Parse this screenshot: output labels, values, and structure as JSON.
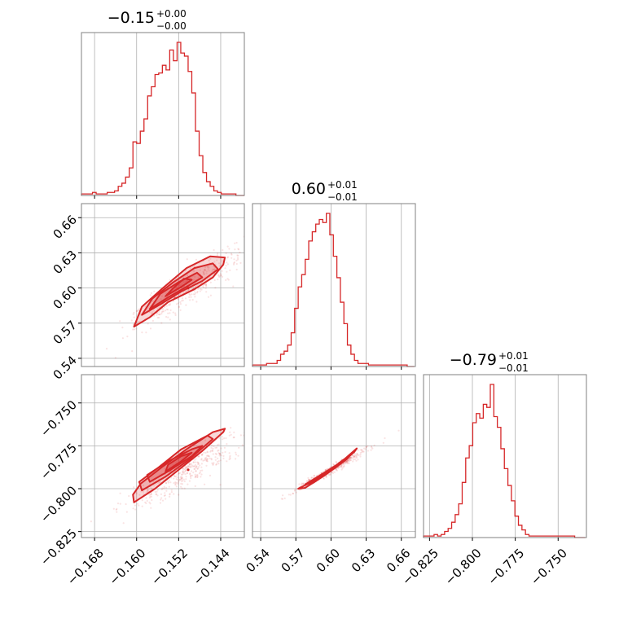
{
  "chart_data": {
    "type": "corner",
    "color": "#d62728",
    "grid": true,
    "parameters": [
      {
        "title_value": "−0.15",
        "title_plus": "+0.00",
        "title_minus": "−0.00",
        "range": [
          -0.1705,
          -0.1395
        ],
        "ticks": [
          -0.168,
          -0.16,
          -0.152,
          -0.144
        ],
        "tick_labels": [
          "−0.168",
          "−0.160",
          "−0.152",
          "−0.144"
        ],
        "histogram": {
          "bin_edges_start": -0.1705,
          "bin_width": 0.0007,
          "counts": [
            1,
            1,
            1,
            2,
            1,
            1,
            1,
            2,
            2,
            3,
            6,
            8,
            12,
            18,
            35,
            34,
            42,
            50,
            65,
            71,
            79,
            80,
            85,
            82,
            95,
            88,
            100,
            93,
            91,
            81,
            67,
            42,
            26,
            15,
            9,
            6,
            3,
            2,
            1,
            1,
            1,
            1,
            0,
            0,
            0
          ]
        }
      },
      {
        "title_value": "0.60",
        "title_plus": "+0.01",
        "title_minus": "−0.01",
        "range": [
          0.533,
          0.672
        ],
        "ticks": [
          0.54,
          0.57,
          0.6,
          0.63,
          0.66
        ],
        "tick_labels": [
          "0.54",
          "0.57",
          "0.60",
          "0.63",
          "0.66"
        ],
        "histogram": {
          "bin_edges_start": 0.533,
          "bin_width": 0.003,
          "counts": [
            1,
            1,
            1,
            1,
            2,
            2,
            2,
            4,
            8,
            10,
            14,
            22,
            38,
            52,
            60,
            70,
            82,
            88,
            93,
            96,
            94,
            100,
            86,
            72,
            58,
            42,
            28,
            14,
            8,
            4,
            2,
            2,
            2,
            1,
            1,
            1,
            1,
            1,
            1,
            1,
            1,
            1,
            1,
            1,
            0,
            0
          ]
        }
      },
      {
        "title_value": "−0.79",
        "title_plus": "+0.01",
        "title_minus": "−0.01",
        "range": [
          -0.8285,
          -0.7335
        ],
        "ticks": [
          -0.825,
          -0.8,
          -0.775,
          -0.75
        ],
        "tick_labels": [
          "−0.825",
          "−0.800",
          "−0.775",
          "−0.750"
        ],
        "histogram": {
          "bin_edges_start": -0.8285,
          "bin_width": 0.00205,
          "counts": [
            1,
            1,
            1,
            2,
            1,
            2,
            4,
            6,
            10,
            15,
            22,
            36,
            52,
            60,
            75,
            81,
            78,
            87,
            85,
            100,
            79,
            72,
            58,
            45,
            34,
            24,
            14,
            8,
            5,
            2,
            1,
            1,
            1,
            1,
            1,
            1,
            1,
            1,
            1,
            1,
            1,
            1,
            1,
            0,
            0,
            0
          ]
        }
      }
    ],
    "pairs": [
      {
        "row": 1,
        "col": 0,
        "center": [
          -0.1502,
          0.6
        ],
        "contours": [
          [
            [
              -0.1605,
              0.567
            ],
            [
              -0.1575,
              0.575
            ],
            [
              -0.154,
              0.588
            ],
            [
              -0.149,
              0.599
            ],
            [
              -0.1455,
              0.609
            ],
            [
              -0.1435,
              0.62
            ],
            [
              -0.1432,
              0.626
            ],
            [
              -0.146,
              0.627
            ],
            [
              -0.1505,
              0.617
            ],
            [
              -0.155,
              0.6
            ],
            [
              -0.159,
              0.584
            ]
          ],
          [
            [
              -0.159,
              0.577
            ],
            [
              -0.1555,
              0.586
            ],
            [
              -0.1515,
              0.597
            ],
            [
              -0.1475,
              0.606
            ],
            [
              -0.1445,
              0.616
            ],
            [
              -0.1455,
              0.621
            ],
            [
              -0.149,
              0.617
            ],
            [
              -0.153,
              0.605
            ],
            [
              -0.157,
              0.591
            ]
          ],
          [
            [
              -0.1575,
              0.582
            ],
            [
              -0.154,
              0.592
            ],
            [
              -0.1505,
              0.601
            ],
            [
              -0.1475,
              0.609
            ],
            [
              -0.1485,
              0.613
            ],
            [
              -0.152,
              0.605
            ],
            [
              -0.1555,
              0.595
            ]
          ],
          [
            [
              -0.1545,
              0.593
            ],
            [
              -0.1515,
              0.601
            ],
            [
              -0.1495,
              0.607
            ],
            [
              -0.151,
              0.608
            ],
            [
              -0.153,
              0.6
            ]
          ]
        ]
      },
      {
        "row": 2,
        "col": 0,
        "center": [
          -0.1502,
          -0.789
        ],
        "contours": [
          [
            [
              -0.1605,
              -0.808
            ],
            [
              -0.1565,
              -0.8
            ],
            [
              -0.152,
              -0.789
            ],
            [
              -0.1475,
              -0.778
            ],
            [
              -0.1435,
              -0.767
            ],
            [
              -0.1432,
              -0.765
            ],
            [
              -0.1455,
              -0.767
            ],
            [
              -0.1505,
              -0.777
            ],
            [
              -0.155,
              -0.787
            ],
            [
              -0.1592,
              -0.797
            ],
            [
              -0.1607,
              -0.8035
            ]
          ],
          [
            [
              -0.159,
              -0.801
            ],
            [
              -0.1545,
              -0.793
            ],
            [
              -0.15,
              -0.783
            ],
            [
              -0.1455,
              -0.771
            ],
            [
              -0.1465,
              -0.769
            ],
            [
              -0.1515,
              -0.777
            ],
            [
              -0.156,
              -0.788
            ],
            [
              -0.1595,
              -0.796
            ]
          ],
          [
            [
              -0.1575,
              -0.796
            ],
            [
              -0.1535,
              -0.789
            ],
            [
              -0.1495,
              -0.781
            ],
            [
              -0.1475,
              -0.775
            ],
            [
              -0.1495,
              -0.777
            ],
            [
              -0.154,
              -0.784
            ],
            [
              -0.158,
              -0.792
            ]
          ],
          [
            [
              -0.1545,
              -0.79
            ],
            [
              -0.1515,
              -0.784
            ],
            [
              -0.1495,
              -0.779
            ],
            [
              -0.1515,
              -0.781
            ],
            [
              -0.154,
              -0.786
            ]
          ]
        ]
      },
      {
        "row": 2,
        "col": 1,
        "center": [
          0.6,
          -0.789
        ],
        "contours": [
          [
            [
              0.572,
              -0.8
            ],
            [
              0.585,
              -0.7955
            ],
            [
              0.6,
              -0.789
            ],
            [
              0.612,
              -0.7825
            ],
            [
              0.622,
              -0.7765
            ],
            [
              0.62,
              -0.7785
            ],
            [
              0.608,
              -0.7855
            ],
            [
              0.594,
              -0.7925
            ],
            [
              0.578,
              -0.7995
            ]
          ],
          [
            [
              0.578,
              -0.7975
            ],
            [
              0.59,
              -0.7925
            ],
            [
              0.604,
              -0.7865
            ],
            [
              0.616,
              -0.7805
            ],
            [
              0.614,
              -0.7825
            ],
            [
              0.6,
              -0.7895
            ],
            [
              0.585,
              -0.7965
            ]
          ],
          [
            [
              0.588,
              -0.794
            ],
            [
              0.6,
              -0.7885
            ],
            [
              0.61,
              -0.784
            ],
            [
              0.607,
              -0.7855
            ],
            [
              0.596,
              -0.791
            ]
          ]
        ]
      }
    ]
  }
}
